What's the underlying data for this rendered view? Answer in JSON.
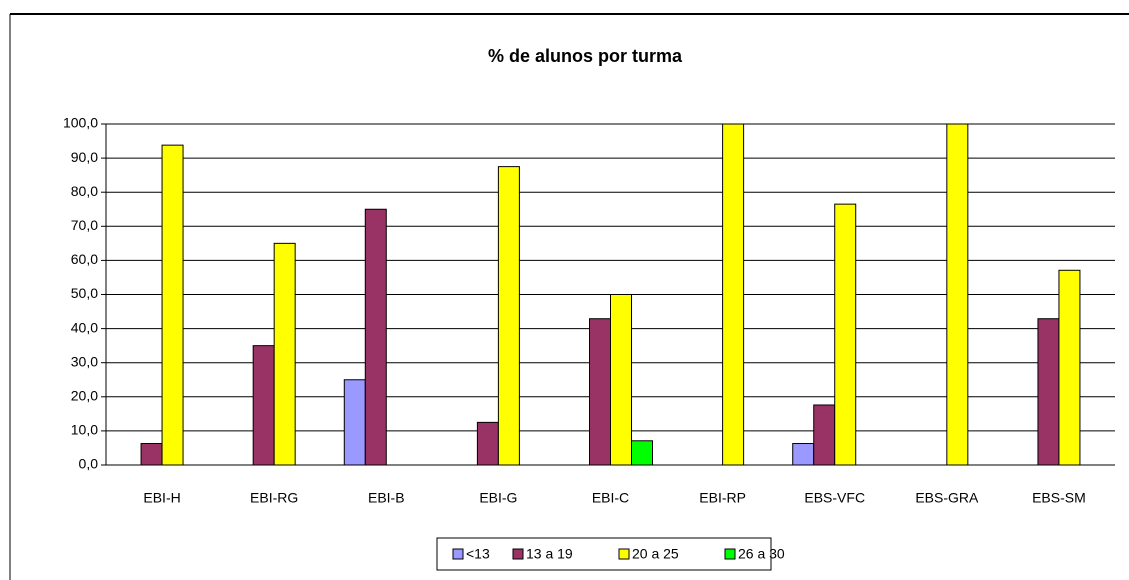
{
  "chart_data": {
    "type": "bar",
    "title": "% de alunos por turma",
    "categories": [
      "EBI-H",
      "EBI-RG",
      "EBI-B",
      "EBI-G",
      "EBI-C",
      "EBI-RP",
      "EBS-VFC",
      "EBS-GRA",
      "EBS-SM"
    ],
    "series": [
      {
        "name": "<13",
        "color": "#9999ff",
        "values": [
          0,
          0,
          25.0,
          0,
          0,
          0,
          6.3,
          0,
          0
        ]
      },
      {
        "name": "13 a 19",
        "color": "#993366",
        "values": [
          6.3,
          35.0,
          75.0,
          12.5,
          42.9,
          0,
          17.6,
          0,
          42.9
        ]
      },
      {
        "name": "20 a 25",
        "color": "#ffff00",
        "values": [
          93.8,
          65.0,
          0,
          87.5,
          50.0,
          100,
          76.5,
          100,
          57.1
        ]
      },
      {
        "name": "26 a 30",
        "color": "#00ff00",
        "values": [
          0,
          0,
          0,
          0,
          7.1,
          0,
          0,
          0,
          0
        ]
      }
    ],
    "ylim": [
      0,
      100
    ],
    "yticks": [
      {
        "value": 0,
        "label": "0,0"
      },
      {
        "value": 10,
        "label": "10,0"
      },
      {
        "value": 20,
        "label": "20,0"
      },
      {
        "value": 30,
        "label": "30,0"
      },
      {
        "value": 40,
        "label": "40,0"
      },
      {
        "value": 50,
        "label": "50,0"
      },
      {
        "value": 60,
        "label": "60,0"
      },
      {
        "value": 70,
        "label": "70,0"
      },
      {
        "value": 80,
        "label": "80,0"
      },
      {
        "value": 90,
        "label": "90,0"
      },
      {
        "value": 100,
        "label": "100,0"
      }
    ],
    "grid": true,
    "legend": "bottom"
  }
}
